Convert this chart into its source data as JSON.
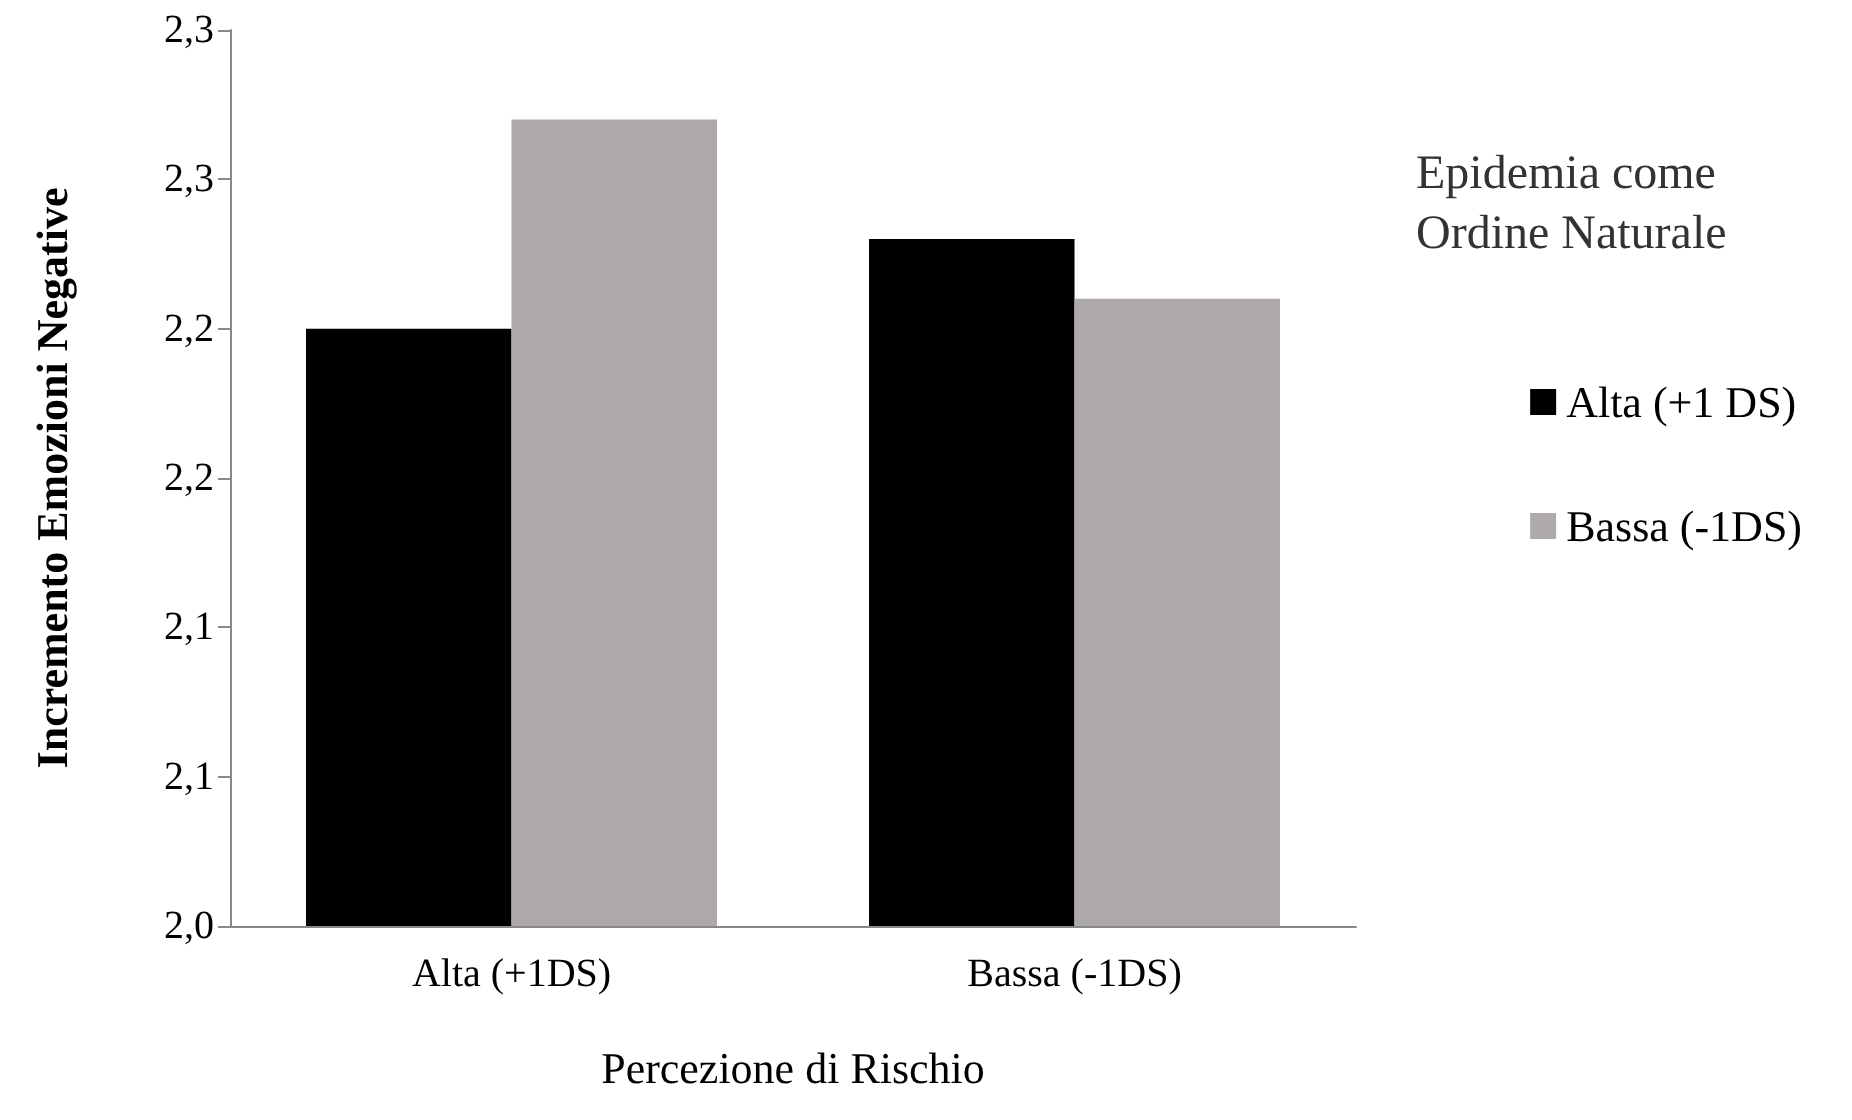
{
  "chart_data": {
    "type": "bar",
    "categories": [
      "Alta (+1DS)",
      "Bassa (-1DS)"
    ],
    "xlabel": "Percezione di Rischio",
    "ylabel": "Incremento Emozioni Negative",
    "legend_title": "Epidemia come Ordine Naturale",
    "series": [
      {
        "name": "Alta (+1 DS)",
        "color": "#000000",
        "values": [
          2.2,
          2.23
        ]
      },
      {
        "name": "Bassa (-1DS)",
        "color": "#aeaaaa",
        "values": [
          2.27,
          2.21
        ]
      }
    ],
    "ylim": [
      2.0,
      2.3
    ],
    "yticks": [
      {
        "value": 2.0,
        "label": "2,0"
      },
      {
        "value": 2.05,
        "label": "2,1"
      },
      {
        "value": 2.1,
        "label": "2,1"
      },
      {
        "value": 2.15,
        "label": "2,2"
      },
      {
        "value": 2.2,
        "label": "2,2"
      },
      {
        "value": 2.25,
        "label": "2,3"
      },
      {
        "value": 2.3,
        "label": "2,3"
      }
    ],
    "grid": false,
    "legend": "right"
  }
}
